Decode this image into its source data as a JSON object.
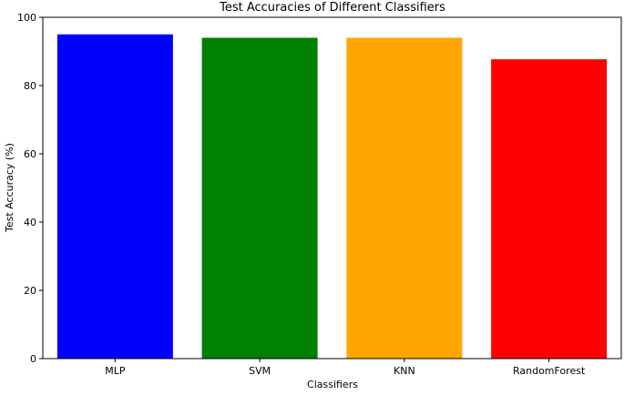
{
  "chart_data": {
    "type": "bar",
    "title": "Test Accuracies of Different Classifiers",
    "xlabel": "Classifiers",
    "ylabel": "Test Accuracy (%)",
    "categories": [
      "MLP",
      "SVM",
      "KNN",
      "RandomForest"
    ],
    "values": [
      95.0,
      94.0,
      94.0,
      87.7
    ],
    "colors": [
      "#0000ff",
      "#008000",
      "#ffa500",
      "#ff0000"
    ],
    "ylim": [
      0,
      100
    ],
    "yticks": [
      0,
      20,
      40,
      60,
      80,
      100
    ],
    "grid": false,
    "legend": "none"
  }
}
